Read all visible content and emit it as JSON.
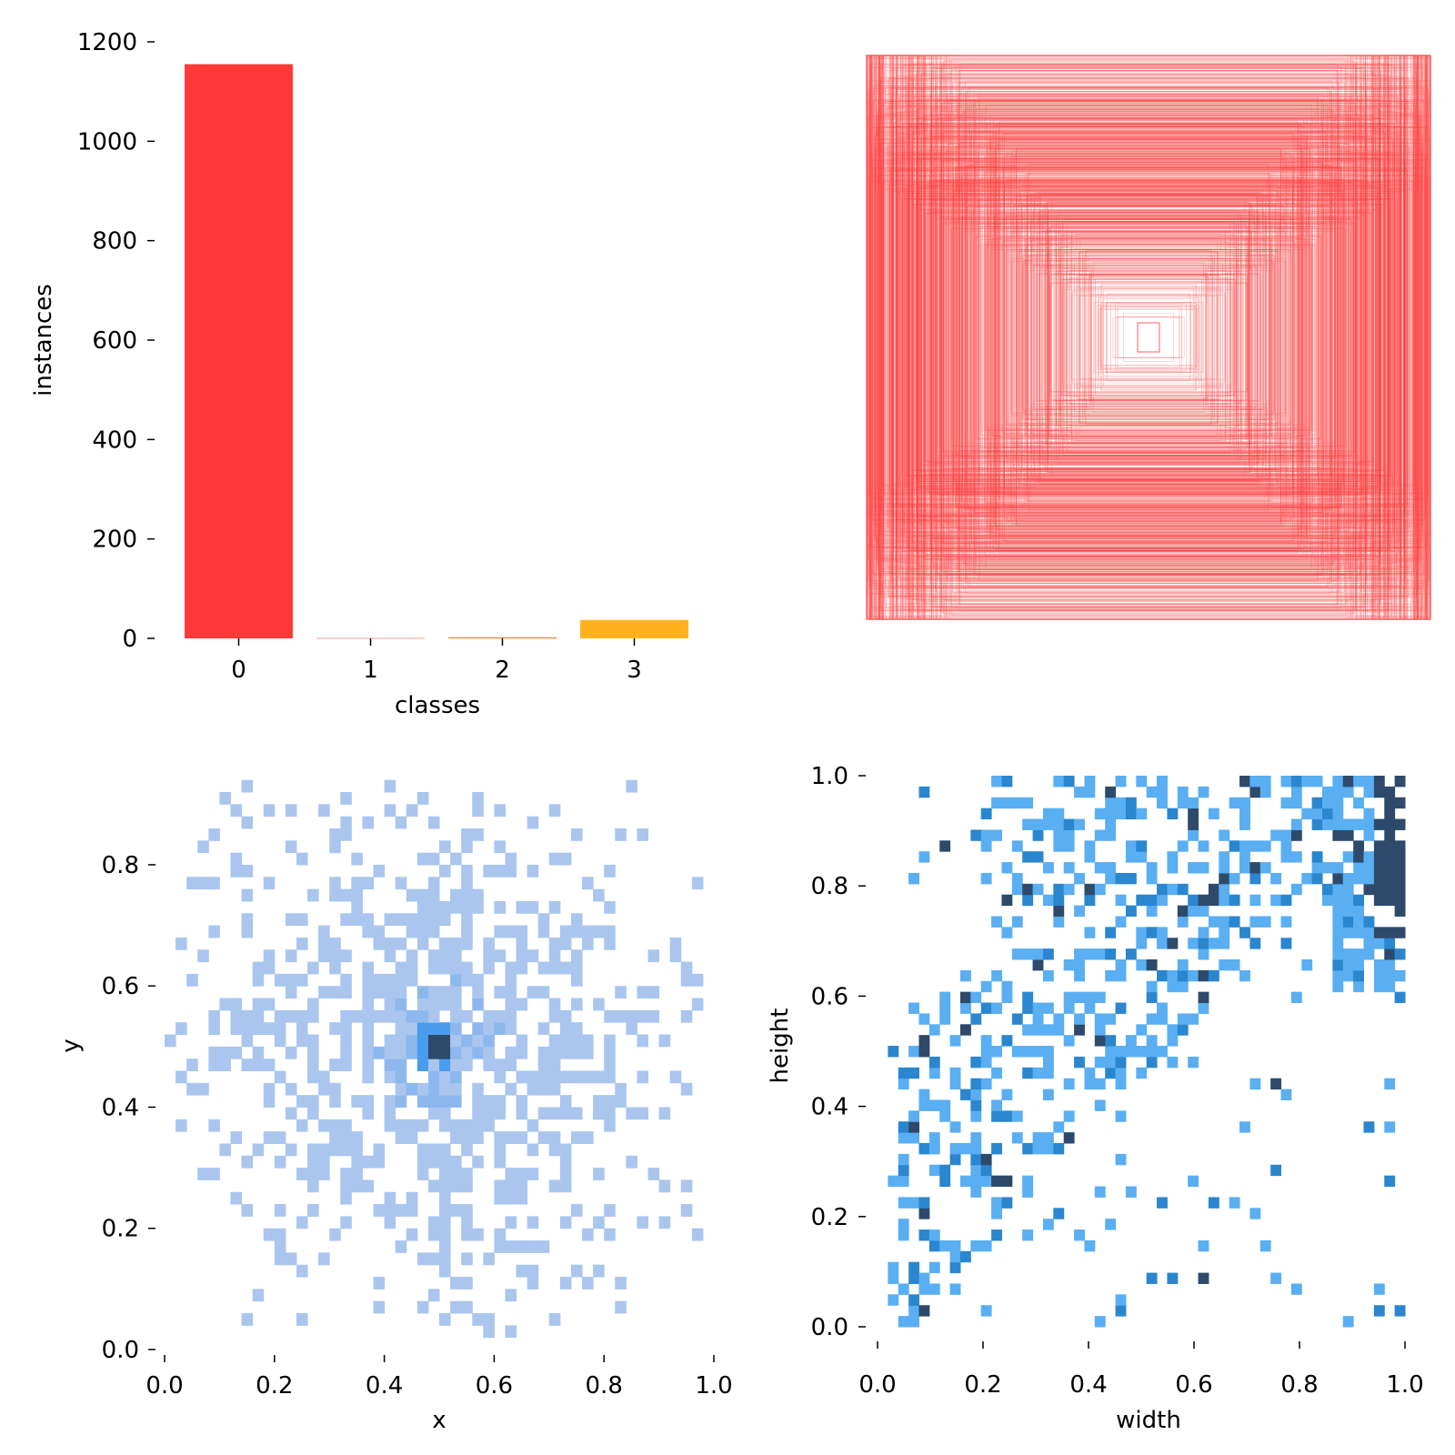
{
  "chart_data": [
    {
      "type": "bar",
      "categories": [
        "0",
        "1",
        "2",
        "3"
      ],
      "values": [
        1155,
        1,
        2,
        37
      ],
      "colors": [
        "#FF3838",
        "#FF9D97",
        "#FF701F",
        "#FFB21D"
      ],
      "xlabel": "classes",
      "ylabel": "instances",
      "ylim": [
        0,
        1200
      ],
      "yticks": [
        "0",
        "200",
        "400",
        "600",
        "800",
        "1000",
        "1200"
      ],
      "grid": false
    },
    {
      "type": "box_overlay",
      "description_color": "#FF3838",
      "box_count_approx": 1195,
      "center": [
        0.5,
        0.5
      ],
      "grid": false
    },
    {
      "type": "heatmap",
      "xlabel": "x",
      "ylabel": "y",
      "xlim": [
        0.0,
        1.0
      ],
      "ylim": [
        0.0,
        0.95
      ],
      "xticks": [
        "0.0",
        "0.2",
        "0.4",
        "0.6",
        "0.8",
        "1.0"
      ],
      "yticks": [
        "0.0",
        "0.2",
        "0.4",
        "0.6",
        "0.8"
      ],
      "color_low": "#AAC6EE",
      "color_mid": "#4A9CEE",
      "color_high": "#2E4A6A",
      "peak": [
        0.5,
        0.5
      ],
      "grid": false
    },
    {
      "type": "heatmap",
      "xlabel": "width",
      "ylabel": "height",
      "xlim": [
        0.0,
        1.0
      ],
      "ylim": [
        0.0,
        1.0
      ],
      "xticks": [
        "0.0",
        "0.2",
        "0.4",
        "0.6",
        "0.8",
        "1.0"
      ],
      "yticks": [
        "0.0",
        "0.2",
        "0.4",
        "0.6",
        "0.8",
        "1.0"
      ],
      "color_low": "#5AAEF2",
      "color_mid": "#2A86CE",
      "color_high": "#2E4A6A",
      "peak": [
        1.0,
        1.0
      ],
      "grid": false
    }
  ]
}
